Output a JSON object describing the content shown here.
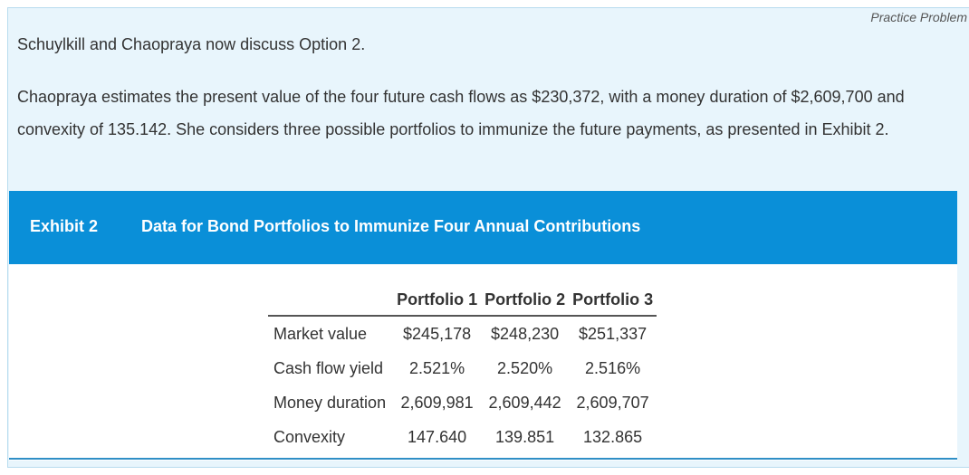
{
  "header": {
    "practice_label": "Practice Problem"
  },
  "body": {
    "paragraph1": "Schuylkill and Chaopraya now discuss Option 2.",
    "paragraph2": "Chaopraya estimates the present value of the four future cash flows as $230,372, with a money duration of $2,609,700 and convexity of 135.142. She considers three possible portfolios to immunize the future payments, as presented in Exhibit 2."
  },
  "exhibit": {
    "number": "Exhibit 2",
    "title": "Data for Bond Portfolios to Immunize Four Annual Contributions",
    "columns": [
      "",
      "Portfolio 1",
      "Portfolio 2",
      "Portfolio 3"
    ],
    "rows": [
      {
        "label": "Market value",
        "values": [
          "$245,178",
          "$248,230",
          "$251,337"
        ]
      },
      {
        "label": "Cash flow yield",
        "values": [
          "2.521%",
          "2.520%",
          "2.516%"
        ]
      },
      {
        "label": "Money duration",
        "values": [
          "2,609,981",
          "2,609,442",
          "2,609,707"
        ]
      },
      {
        "label": "Convexity",
        "values": [
          "147.640",
          "139.851",
          "132.865"
        ]
      }
    ],
    "header_color": "#0a8fd8"
  }
}
